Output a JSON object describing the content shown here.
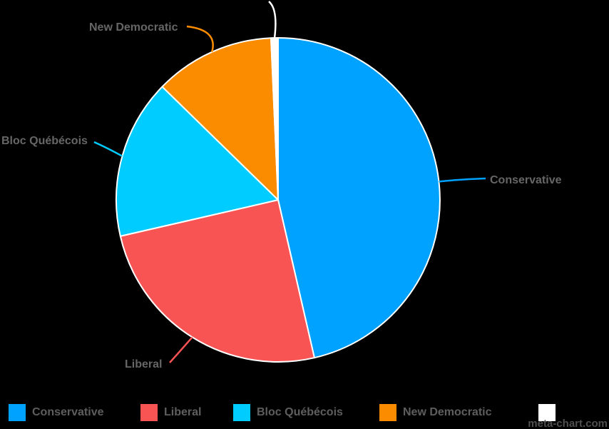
{
  "page": {
    "background": "#000000"
  },
  "chart_data": {
    "type": "pie",
    "title": "",
    "labels": [
      "Conservative",
      "Liberal",
      "Bloc Québécois",
      "New Democratic",
      ""
    ],
    "values": [
      46.4,
      25.0,
      15.9,
      12.0,
      0.7
    ],
    "values_unit": "percent (estimated from slice angles)",
    "colors": [
      "#00A2FF",
      "#F85454",
      "#00CCFF",
      "#FB8C00",
      "#FFFFFF"
    ],
    "start_angle_deg": 0,
    "direction": "clockwise",
    "slice_border_color": "#FFFFFF",
    "label_color": "#666666",
    "legend_position": "bottom",
    "legend_text_color": "#5E5E5E"
  },
  "watermark": {
    "text": "meta-chart.com",
    "color": "#4F4F4F"
  }
}
